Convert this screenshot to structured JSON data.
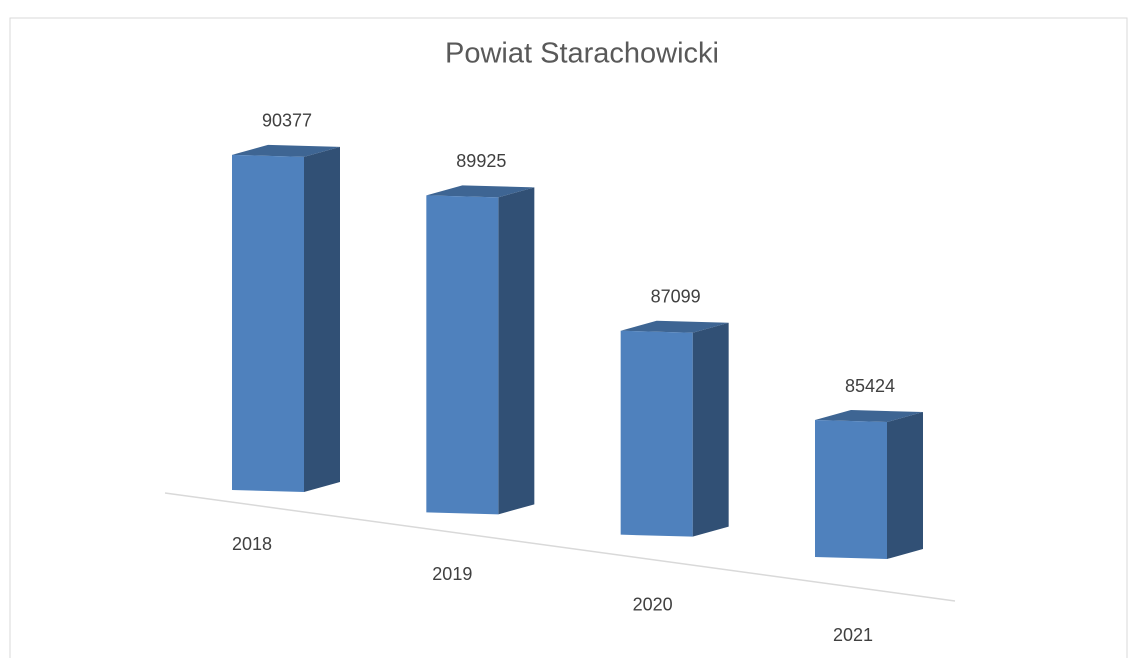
{
  "chart_data": {
    "type": "bar3d",
    "title": "Powiat Starachowicki",
    "categories": [
      "2018",
      "2019",
      "2020",
      "2021"
    ],
    "values": [
      90377,
      89925,
      87099,
      85424
    ],
    "color": "#4f81bd",
    "ylim": [
      82000,
      91000
    ]
  }
}
